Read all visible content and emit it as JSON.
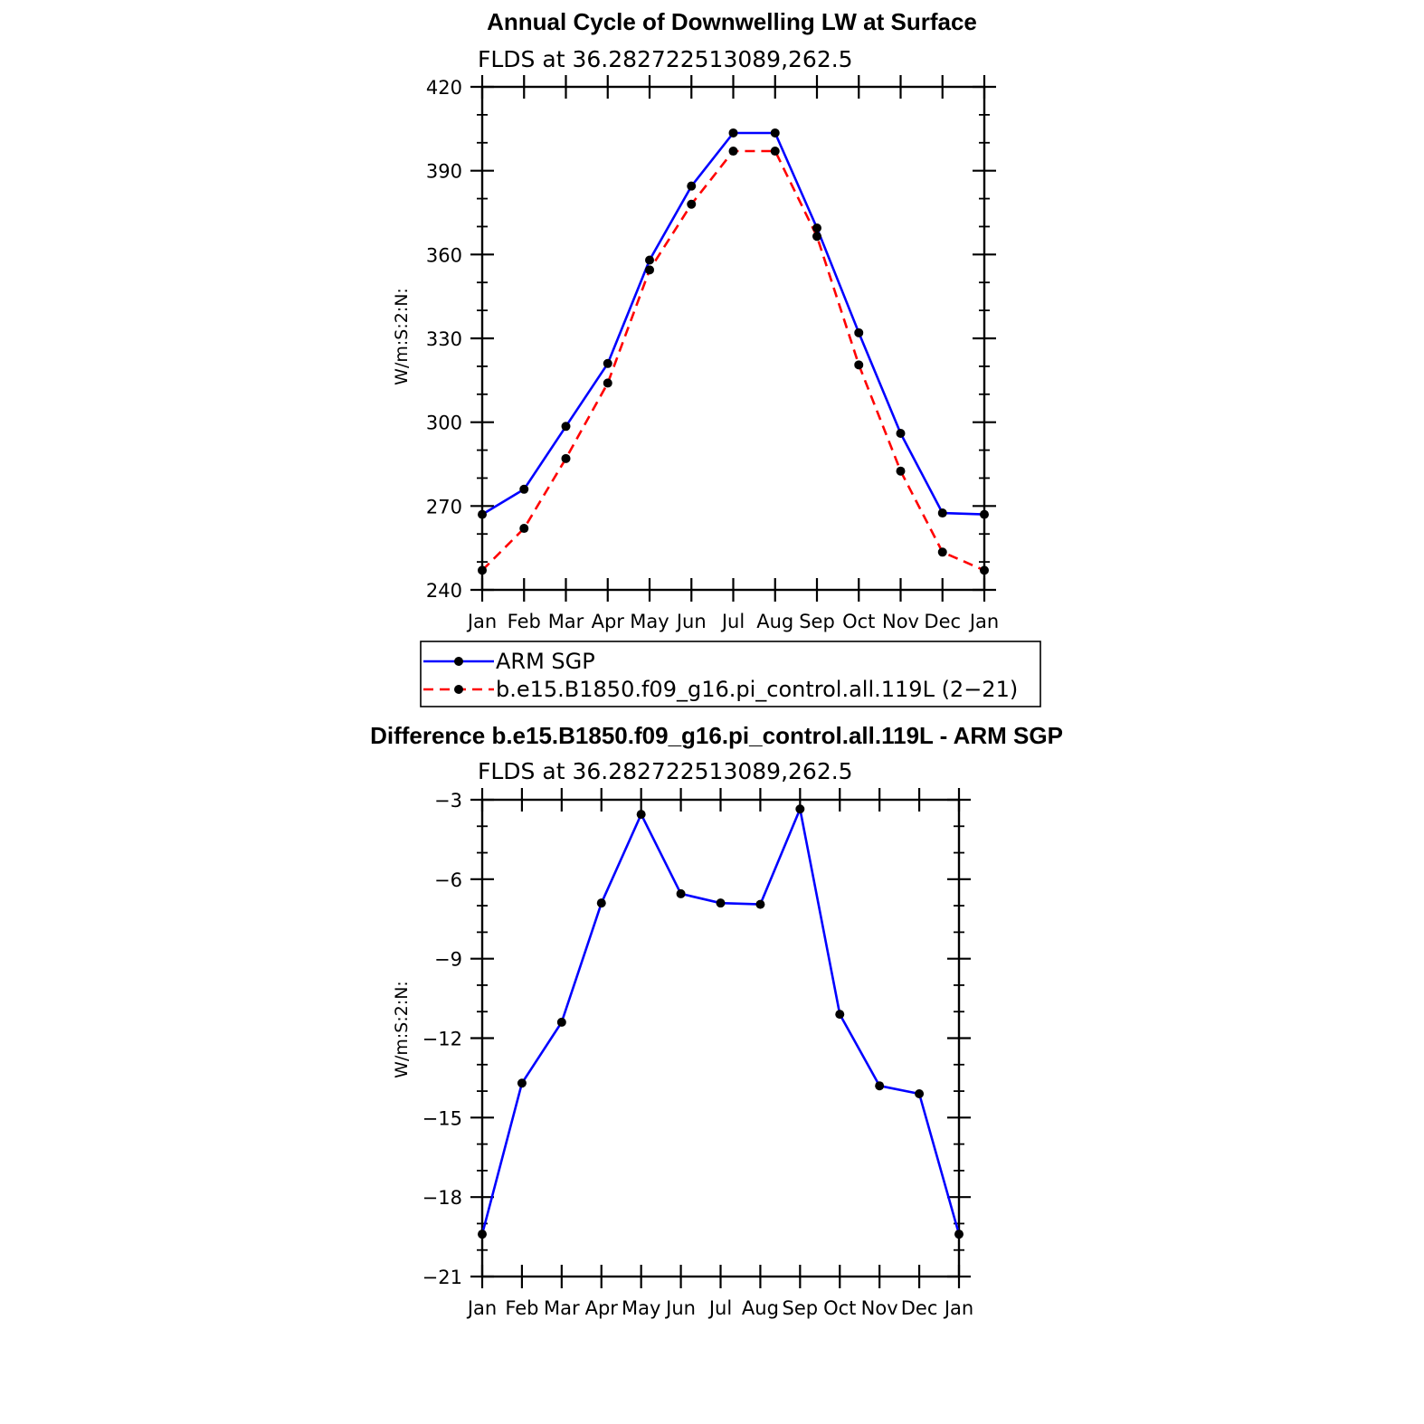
{
  "chart_data": [
    {
      "type": "line",
      "title": "Annual Cycle of Downwelling LW at Surface",
      "subtitle": "FLDS at 36.282722513089,262.5",
      "xlabel": "",
      "ylabel": "W/m:S:2:N:",
      "categories": [
        "Jan",
        "Feb",
        "Mar",
        "Apr",
        "May",
        "Jun",
        "Jul",
        "Aug",
        "Sep",
        "Oct",
        "Nov",
        "Dec",
        "Jan"
      ],
      "ylim": [
        240,
        420
      ],
      "yticks": [
        "420",
        "390",
        "360",
        "330",
        "300",
        "270",
        "240"
      ],
      "series": [
        {
          "name": "ARM SGP",
          "color": "#0000ff",
          "dash": "solid",
          "values": [
            267,
            276,
            298.5,
            321,
            358,
            384.5,
            403.5,
            403.5,
            369.5,
            332,
            296,
            267.5,
            267
          ]
        },
        {
          "name": "b.e15.B1850.f09_g16.pi_control.all.119L (2−21)",
          "color": "#ff0000",
          "dash": "dashed",
          "values": [
            247,
            262,
            287,
            314,
            354.5,
            378,
            397,
            397,
            366.5,
            320.5,
            282.5,
            253.5,
            247
          ]
        }
      ],
      "legend": "below"
    },
    {
      "type": "line",
      "title": "Difference b.e15.B1850.f09_g16.pi_control.all.119L - ARM SGP",
      "subtitle": "FLDS at 36.282722513089,262.5",
      "xlabel": "",
      "ylabel": "W/m:S:2:N:",
      "categories": [
        "Jan",
        "Feb",
        "Mar",
        "Apr",
        "May",
        "Jun",
        "Jul",
        "Aug",
        "Sep",
        "Oct",
        "Nov",
        "Dec",
        "Jan"
      ],
      "ylim": [
        -21,
        -3
      ],
      "yticks": [
        "−3",
        "−6",
        "−9",
        "−12",
        "−15",
        "−18",
        "−21"
      ],
      "series": [
        {
          "color": "#0000ff",
          "dash": "solid",
          "values": [
            -19.4,
            -13.7,
            -11.4,
            -6.9,
            -3.55,
            -6.55,
            -6.9,
            -6.95,
            -3.35,
            -11.1,
            -13.8,
            -14.1,
            -19.4
          ]
        }
      ]
    }
  ]
}
